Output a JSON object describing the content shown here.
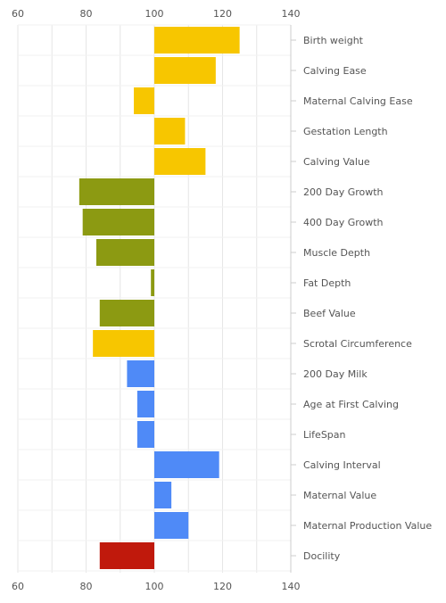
{
  "chart_data": {
    "type": "bar",
    "orientation": "horizontal",
    "xlim": [
      60,
      140
    ],
    "x_ticks": [
      60,
      80,
      100,
      120,
      140
    ],
    "baseline": 100,
    "grid": true,
    "categories": [
      "Birth weight",
      "Calving Ease",
      "Maternal Calving Ease",
      "Gestation Length",
      "Calving Value",
      "200 Day Growth",
      "400 Day Growth",
      "Muscle Depth",
      "Fat Depth",
      "Beef Value",
      "Scrotal Circumference",
      "200 Day Milk",
      "Age at First Calving",
      "LifeSpan",
      "Calving Interval",
      "Maternal Value",
      "Maternal Production Value",
      "Docility"
    ],
    "values": [
      125,
      118,
      94,
      109,
      115,
      78,
      79,
      83,
      99,
      84,
      82,
      92,
      95,
      95,
      119,
      105,
      110,
      84
    ],
    "bar_colors": [
      "#F7C600",
      "#F7C600",
      "#F7C600",
      "#F7C600",
      "#F7C600",
      "#8C9A12",
      "#8C9A12",
      "#8C9A12",
      "#8C9A12",
      "#8C9A12",
      "#F7C600",
      "#4F8AF7",
      "#4F8AF7",
      "#4F8AF7",
      "#4F8AF7",
      "#4F8AF7",
      "#4F8AF7",
      "#C0190C"
    ]
  }
}
